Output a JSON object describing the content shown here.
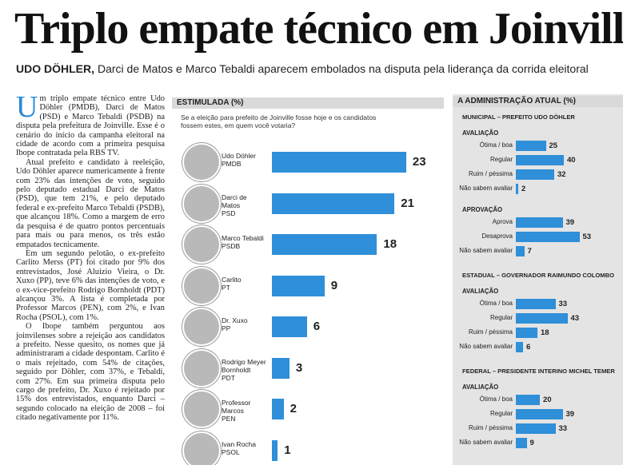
{
  "headline": "Triplo empate técnico em Joinville",
  "subhead": {
    "lead": "UDO DÖHLER,",
    "text": "Darci de Matos e Marco Tebaldi aparecem embolados na disputa pela liderança da corrida eleitoral"
  },
  "article": {
    "drop_cap": "U",
    "paragraphs": [
      "m triplo empate técnico entre Udo Döhler (PMDB), Darci de Matos (PSD) e Marco Tebaldi (PSDB) na disputa pela prefeitura de Joinville. Esse é o cenário do início da campanha eleitoral na cidade de acordo com a primeira pesquisa Ibope contratada pela RBS TV.",
      "Atual prefeito e candidato à reeleição, Udo Döhler aparece numericamente à frente com 23% das intenções de voto, seguido pelo deputado estadual Darci de Matos (PSD), que tem 21%, e pelo deputado federal e ex-prefeito Marco Tebaldi (PSDB), que alcançou 18%. Como a margem de erro da pesquisa é de quatro pontos percentuais para mais ou para menos, os três estão empatados tecnicamente.",
      "Em um segundo pelotão, o ex-prefeito Carlito Merss (PT) foi citado por 9% dos entrevistados, José Aluizio Vieira, o Dr. Xuxo (PP), teve 6% das intenções de voto, e o ex-vice-prefeito Rodrigo Bornholdt (PDT) alcançou 3%. A lista é completada por Professor Marcos (PEN), com 2%, e Ivan Rocha (PSOL), com 1%.",
      "O Ibope também perguntou aos joinvilenses sobre a rejeição aos candidatos a prefeito. Nesse quesito, os nomes que já administraram a cidade despontam. Carlito é o mais rejeitado, com 54% de citações, seguido por Döhler, com 37%, e Tebaldi, com 27%. Em sua primeira disputa pelo cargo de prefeito, Dr. Xuxo é rejeitado por 15% dos entrevistados, enquanto Darci – segundo colocado na eleição de 2008 – foi citado negativamente por 11%."
    ]
  },
  "poll": {
    "title": "ESTIMULADA (%)",
    "question": "Se a eleição para prefeito de Joinville fosse hoje e os candidatos fossem estes, em quem você votaria?",
    "candidates": [
      {
        "name": "Udo Döhler",
        "party": "PMDB",
        "value": 23
      },
      {
        "name": "Darci de Matos",
        "party": "PSD",
        "value": 21
      },
      {
        "name": "Marco Tebaldi",
        "party": "PSDB",
        "value": 18
      },
      {
        "name": "Carlito",
        "party": "PT",
        "value": 9
      },
      {
        "name": "Dr. Xuxo",
        "party": "PP",
        "value": 6
      },
      {
        "name": "Rodrigo Meyer Bornholdt",
        "party": "PDT",
        "value": 3
      },
      {
        "name": "Professor Marcos",
        "party": "PEN",
        "value": 2
      },
      {
        "name": "Ivan Rocha",
        "party": "PSOL",
        "value": 1
      }
    ]
  },
  "admin": {
    "title": "A ADMINISTRAÇÃO ATUAL (%)",
    "sections": [
      {
        "title": "MUNICIPAL – PREFEITO UDO DÖHLER",
        "groups": [
          {
            "title": "AVALIAÇÃO",
            "items": [
              {
                "label": "Ótima / boa",
                "value": 25
              },
              {
                "label": "Regular",
                "value": 40
              },
              {
                "label": "Ruim / péssima",
                "value": 32
              },
              {
                "label": "Não sabem avaliar",
                "value": 2
              }
            ]
          },
          {
            "title": "APROVAÇÃO",
            "items": [
              {
                "label": "Aprova",
                "value": 39
              },
              {
                "label": "Desaprova",
                "value": 53
              },
              {
                "label": "Não sabem avaliar",
                "value": 7
              }
            ]
          }
        ]
      },
      {
        "title": "ESTADUAL – GOVERNADOR RAIMUNDO COLOMBO",
        "groups": [
          {
            "title": "AVALIAÇÃO",
            "items": [
              {
                "label": "Ótima / boa",
                "value": 33
              },
              {
                "label": "Regular",
                "value": 43
              },
              {
                "label": "Ruim / péssima",
                "value": 18
              },
              {
                "label": "Não sabem avaliar",
                "value": 6
              }
            ]
          }
        ]
      },
      {
        "title": "FEDERAL – PRESIDENTE INTERINO MICHEL TEMER",
        "groups": [
          {
            "title": "AVALIAÇÃO",
            "items": [
              {
                "label": "Ótima / boa",
                "value": 20
              },
              {
                "label": "Regular",
                "value": 39
              },
              {
                "label": "Ruim / péssima",
                "value": 33
              },
              {
                "label": "Não sabem avaliar",
                "value": 9
              }
            ]
          }
        ]
      }
    ]
  }
}
